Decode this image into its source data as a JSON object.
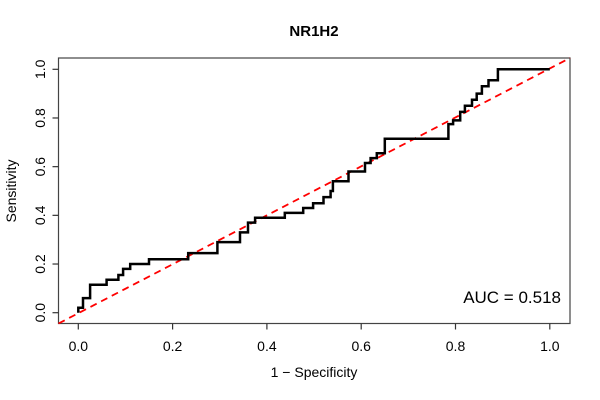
{
  "chart_data": {
    "type": "line",
    "subtype": "roc-curve",
    "title": "NR1H2",
    "xlabel": "1 − Specificity",
    "ylabel": "Sensitivity",
    "annotation": "AUC = 0.518",
    "auc_value": 0.518,
    "xlim": [
      0,
      1
    ],
    "ylim": [
      0,
      1
    ],
    "grid": false,
    "legend": "none",
    "x_tick_values": [
      0,
      0.2,
      0.4,
      0.6,
      0.8,
      1.0
    ],
    "x_tick_labels": [
      "0.0",
      "0.2",
      "0.4",
      "0.6",
      "0.8",
      "1.0"
    ],
    "y_tick_values": [
      0,
      0.2,
      0.4,
      0.6,
      0.8,
      1.0
    ],
    "y_tick_labels": [
      "0.0",
      "0.2",
      "0.4",
      "0.6",
      "0.8",
      "1.0"
    ],
    "colors": {
      "roc_curve": "#000000",
      "chance_line": "#ff0000",
      "axis_box": "#444444"
    },
    "series": [
      {
        "name": "ROC step curve",
        "style": "solid-step",
        "color": "#000000",
        "points": [
          [
            0.0,
            0.0
          ],
          [
            0.0,
            0.02
          ],
          [
            0.01,
            0.02
          ],
          [
            0.01,
            0.06
          ],
          [
            0.025,
            0.06
          ],
          [
            0.025,
            0.115
          ],
          [
            0.06,
            0.115
          ],
          [
            0.06,
            0.135
          ],
          [
            0.085,
            0.135
          ],
          [
            0.085,
            0.155
          ],
          [
            0.095,
            0.155
          ],
          [
            0.095,
            0.18
          ],
          [
            0.11,
            0.18
          ],
          [
            0.11,
            0.2
          ],
          [
            0.15,
            0.2
          ],
          [
            0.15,
            0.22
          ],
          [
            0.233,
            0.22
          ],
          [
            0.233,
            0.245
          ],
          [
            0.295,
            0.245
          ],
          [
            0.295,
            0.29
          ],
          [
            0.343,
            0.29
          ],
          [
            0.343,
            0.33
          ],
          [
            0.36,
            0.33
          ],
          [
            0.36,
            0.37
          ],
          [
            0.375,
            0.37
          ],
          [
            0.375,
            0.39
          ],
          [
            0.438,
            0.39
          ],
          [
            0.438,
            0.41
          ],
          [
            0.477,
            0.41
          ],
          [
            0.477,
            0.43
          ],
          [
            0.498,
            0.43
          ],
          [
            0.498,
            0.45
          ],
          [
            0.52,
            0.45
          ],
          [
            0.52,
            0.475
          ],
          [
            0.535,
            0.475
          ],
          [
            0.535,
            0.5
          ],
          [
            0.54,
            0.5
          ],
          [
            0.54,
            0.54
          ],
          [
            0.573,
            0.54
          ],
          [
            0.573,
            0.58
          ],
          [
            0.608,
            0.58
          ],
          [
            0.608,
            0.615
          ],
          [
            0.62,
            0.615
          ],
          [
            0.62,
            0.635
          ],
          [
            0.633,
            0.635
          ],
          [
            0.633,
            0.655
          ],
          [
            0.65,
            0.655
          ],
          [
            0.65,
            0.715
          ],
          [
            0.785,
            0.715
          ],
          [
            0.785,
            0.775
          ],
          [
            0.795,
            0.775
          ],
          [
            0.795,
            0.79
          ],
          [
            0.81,
            0.79
          ],
          [
            0.81,
            0.825
          ],
          [
            0.82,
            0.825
          ],
          [
            0.82,
            0.85
          ],
          [
            0.835,
            0.85
          ],
          [
            0.835,
            0.875
          ],
          [
            0.845,
            0.875
          ],
          [
            0.845,
            0.9
          ],
          [
            0.856,
            0.9
          ],
          [
            0.856,
            0.93
          ],
          [
            0.87,
            0.93
          ],
          [
            0.87,
            0.955
          ],
          [
            0.89,
            0.955
          ],
          [
            0.89,
            1.0
          ],
          [
            1.0,
            1.0
          ]
        ]
      },
      {
        "name": "chance diagonal",
        "style": "dashed-line",
        "color": "#ff0000",
        "points": [
          [
            0,
            0
          ],
          [
            1,
            1
          ]
        ]
      }
    ]
  }
}
